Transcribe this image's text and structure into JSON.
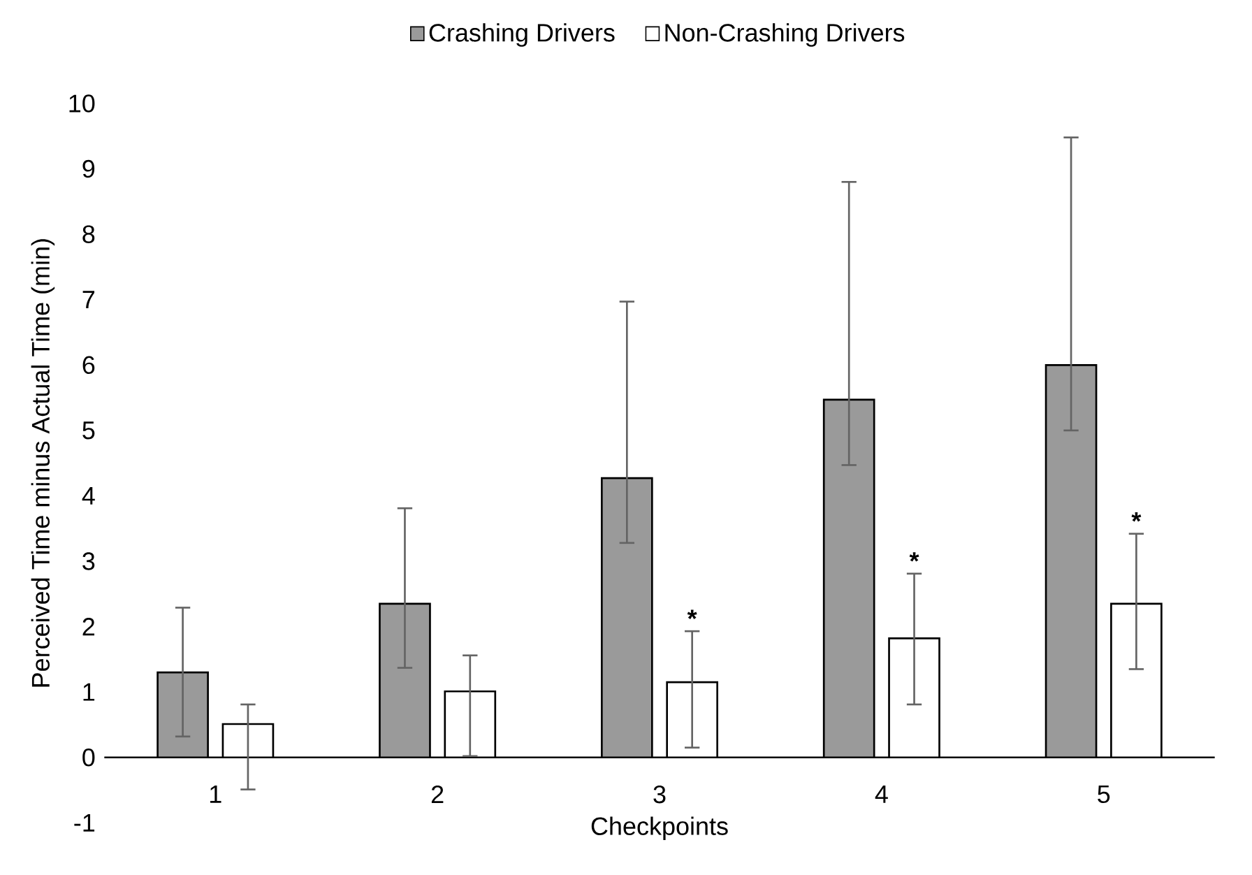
{
  "chart_data": {
    "type": "bar",
    "xlabel": "Checkpoints",
    "ylabel": "Perceived Time minus Actual Time (min)",
    "categories": [
      "1",
      "2",
      "3",
      "4",
      "5"
    ],
    "series": [
      {
        "name": "Crashing Drivers",
        "color": "#9a9a9a",
        "values": [
          1.3,
          2.35,
          4.27,
          5.47,
          6.0
        ],
        "errors": [
          [
            0.32,
            2.29
          ],
          [
            1.37,
            3.81
          ],
          [
            3.28,
            6.97
          ],
          [
            4.47,
            8.8
          ],
          [
            5.0,
            9.48
          ]
        ]
      },
      {
        "name": "Non-Crashing Drivers",
        "color": "#ffffff",
        "values": [
          0.51,
          1.01,
          1.15,
          1.82,
          2.35
        ],
        "errors": [
          [
            -0.49,
            0.81
          ],
          [
            0.02,
            1.56
          ],
          [
            0.15,
            1.93
          ],
          [
            0.81,
            2.81
          ],
          [
            1.35,
            3.42
          ]
        ]
      }
    ],
    "ylim": [
      -1,
      10
    ],
    "yticks": [
      -1,
      0,
      1,
      2,
      3,
      4,
      5,
      6,
      7,
      8,
      9,
      10
    ],
    "grid": false,
    "legend": "top",
    "annotations": [
      "*",
      "*",
      "*"
    ]
  }
}
